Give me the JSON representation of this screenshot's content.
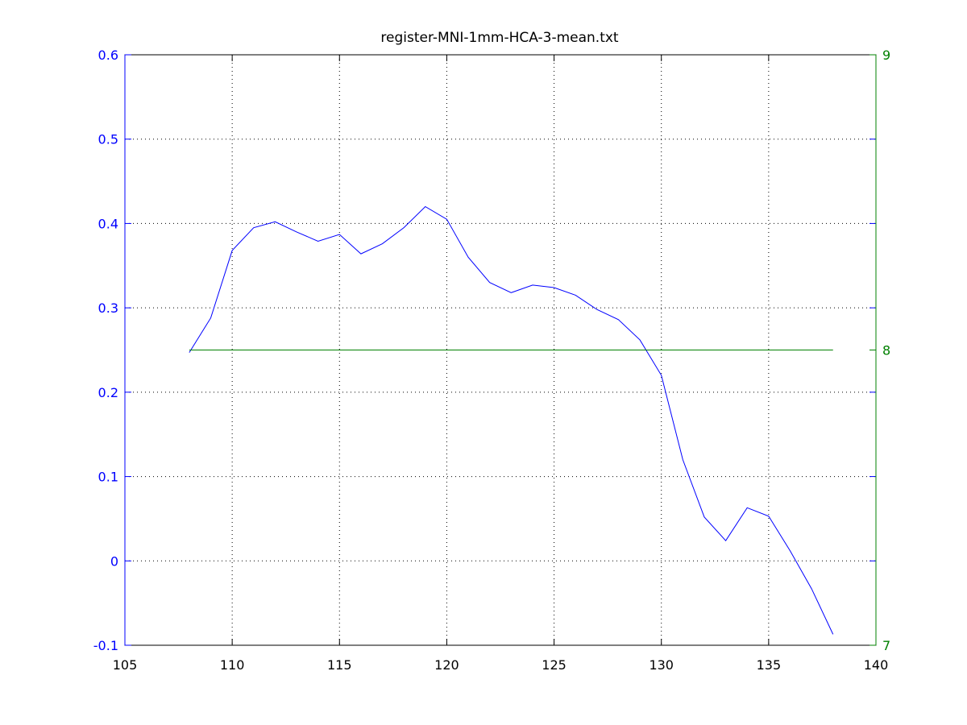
{
  "chart_data": {
    "type": "line",
    "title": "register-MNI-1mm-HCA-3-mean.txt",
    "xlabel": "",
    "ylabel": "",
    "xlim": [
      105,
      140
    ],
    "ylim": [
      -0.1,
      0.6
    ],
    "y2lim": [
      7,
      9
    ],
    "x_ticks": [
      "105",
      "110",
      "115",
      "120",
      "125",
      "130",
      "135",
      "140"
    ],
    "y_ticks": [
      "-0.1",
      "0",
      "0.1",
      "0.2",
      "0.3",
      "0.4",
      "0.5",
      "0.6"
    ],
    "y2_ticks": [
      "7",
      "8",
      "9"
    ],
    "grid": true,
    "colors": {
      "left_axis": "#0000ff",
      "right_axis": "#008000",
      "left_series": "#0000ff",
      "right_series": "#008000"
    },
    "series": [
      {
        "axis": "left",
        "x": [
          108,
          109,
          110,
          111,
          112,
          113,
          114,
          115,
          116,
          117,
          118,
          119,
          120,
          121,
          122,
          123,
          124,
          125,
          126,
          127,
          128,
          129,
          130,
          131,
          132,
          133,
          134,
          135,
          136,
          137,
          138
        ],
        "values": [
          0.247,
          0.288,
          0.368,
          0.395,
          0.402,
          0.39,
          0.379,
          0.387,
          0.364,
          0.376,
          0.395,
          0.42,
          0.405,
          0.36,
          0.33,
          0.318,
          0.327,
          0.324,
          0.315,
          0.298,
          0.286,
          0.262,
          0.22,
          0.12,
          0.052,
          0.024,
          0.063,
          0.053,
          0.012,
          -0.033,
          -0.087
        ]
      },
      {
        "axis": "right",
        "x": [
          108,
          138
        ],
        "values": [
          8,
          8
        ]
      }
    ]
  }
}
